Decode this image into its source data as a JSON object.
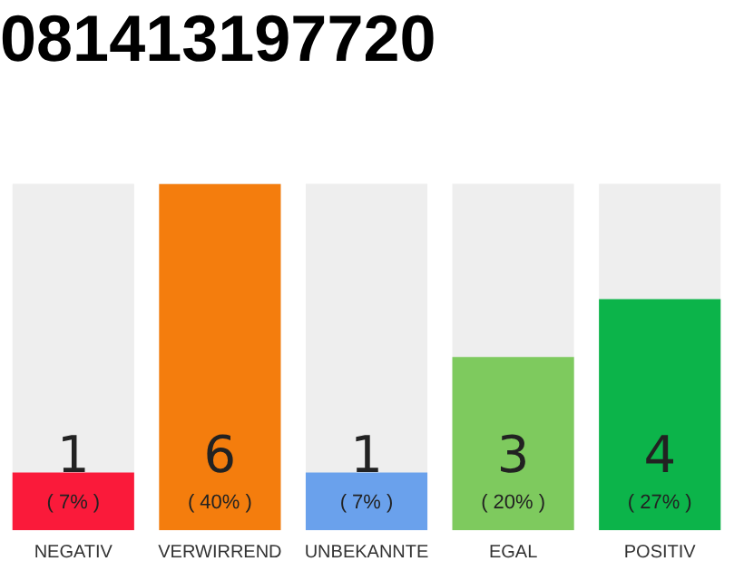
{
  "chart_data": {
    "type": "bar",
    "title": "081413197720",
    "categories": [
      "NEGATIV",
      "VERWIRREND",
      "UNBEKANNTE",
      "EGAL",
      "POSITIV"
    ],
    "values": [
      1,
      6,
      1,
      3,
      4
    ],
    "colors": [
      "#fa1a3a",
      "#f47d0d",
      "#6aa1ec",
      "#7eca5e",
      "#0cb44a"
    ],
    "data_labels": true,
    "annotations": [
      {
        "text": "( 7% )",
        "x": "NEGATIV",
        "y": 0
      },
      {
        "text": "( 40% )",
        "x": "VERWIRREND",
        "y": 0
      },
      {
        "text": "( 7% )",
        "x": "UNBEKANNTE",
        "y": 0
      },
      {
        "text": "( 20% )",
        "x": "EGAL",
        "y": 0
      },
      {
        "text": "( 27% )",
        "x": "POSITIV",
        "y": 0
      }
    ],
    "grid": false,
    "legend": false
  }
}
